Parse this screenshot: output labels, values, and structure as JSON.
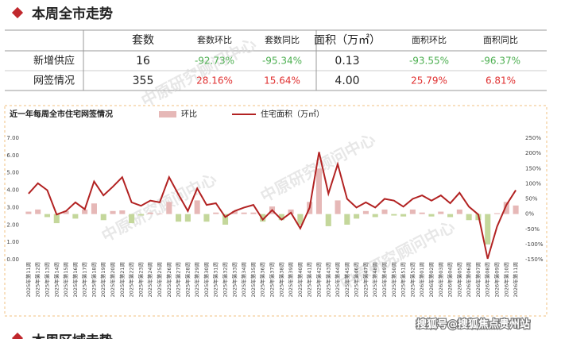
{
  "header": {
    "title": "本周全市走势"
  },
  "table": {
    "columns": [
      "套数",
      "套数环比",
      "套数同比",
      "面积（万㎡）",
      "面积环比",
      "面积同比"
    ],
    "rows": [
      [
        "新增供应",
        "16",
        "-92.73%",
        "-95.34%",
        "0.13",
        "-93.55%",
        "-96.37%"
      ],
      [
        "网签情况",
        "355",
        "28.16%",
        "15.64%",
        "4.00",
        "25.79%",
        "6.81%"
      ]
    ]
  },
  "chart_data": {
    "type": "bar-line",
    "title": "近一年每周全市住宅网签情况",
    "categories": [
      "2025年第11周",
      "2025年第12周",
      "2025年第13周",
      "2025年第14周",
      "2025年第15周",
      "2025年第16周",
      "2025年第17周",
      "2025年第18周",
      "2025年第19周",
      "2025年第20周",
      "2025年第21周",
      "2025年第22周",
      "2025年第23周",
      "2025年第24周",
      "2025年第25周",
      "2025年第26周",
      "2025年第27周",
      "2025年第28周",
      "2025年第29周",
      "2025年第30周",
      "2025年第31周",
      "2025年第32周",
      "2025年第33周",
      "2025年第34周",
      "2025年第35周",
      "2025年第36周",
      "2025年第37周",
      "2025年第38周",
      "2025年第39周",
      "2025年第40周",
      "2025年第41周",
      "2025年第42周",
      "2025年第43周",
      "2025年第44周",
      "2025年第45周",
      "2025年第46周",
      "2025年第47周",
      "2025年第48周",
      "2025年第49周",
      "2025年第50周",
      "2025年第51周",
      "2025年第52周",
      "2026年第01周",
      "2026年第02周",
      "2026年第03周",
      "2026年第04周",
      "2026年第05周",
      "2026年第06周",
      "2026年第07周",
      "2026年第08周",
      "2026年第09周",
      "2026年第10周",
      "2026年第11周"
    ],
    "series": [
      {
        "name": "环比",
        "type": "bar",
        "axis": "y2",
        "color": "#e6b8b7",
        "negative_color": "#c4d79b",
        "values": [
          8,
          15,
          -10,
          -30,
          10,
          -15,
          15,
          35,
          -20,
          10,
          12,
          -30,
          -5,
          5,
          2,
          40,
          -25,
          -25,
          45,
          -25,
          5,
          -35,
          10,
          5,
          5,
          -25,
          25,
          -20,
          15,
          -35,
          40,
          150,
          -40,
          45,
          -35,
          -15,
          10,
          -10,
          15,
          -5,
          -8,
          15,
          5,
          -8,
          8,
          -10,
          15,
          -20,
          -20,
          -100,
          3,
          40,
          28.16
        ]
      },
      {
        "name": "住宅面积（万㎡）",
        "type": "line",
        "axis": "y",
        "color": "#b22222",
        "values": [
          3.8,
          4.4,
          4.0,
          2.6,
          2.8,
          3.3,
          2.9,
          4.5,
          3.7,
          4.2,
          4.75,
          3.3,
          3.1,
          3.4,
          3.3,
          4.75,
          3.75,
          2.8,
          4.1,
          3.15,
          3.25,
          2.45,
          2.8,
          3.0,
          3.15,
          2.3,
          2.85,
          2.3,
          2.7,
          1.8,
          3.0,
          6.2,
          3.8,
          5.5,
          3.5,
          3.0,
          3.3,
          3.0,
          3.5,
          3.4,
          3.05,
          3.5,
          3.7,
          3.4,
          3.7,
          3.25,
          3.85,
          3.05,
          2.6,
          0.05,
          1.9,
          3.15,
          4.0
        ]
      }
    ],
    "ylim": [
      0,
      7
    ],
    "yticks": [
      {
        "value": 0,
        "label": "0.00"
      },
      {
        "value": 1,
        "label": "1.00"
      },
      {
        "value": 2,
        "label": "2.00"
      },
      {
        "value": 3,
        "label": "3.00"
      },
      {
        "value": 4,
        "label": "4.00"
      },
      {
        "value": 5,
        "label": "5.00"
      },
      {
        "value": 6,
        "label": "6.00"
      },
      {
        "value": 7,
        "label": "7.00"
      }
    ],
    "y2lim": [
      -150,
      250
    ],
    "y2ticks": [
      {
        "value": -150,
        "label": "-150%"
      },
      {
        "value": -100,
        "label": "-100%"
      },
      {
        "value": -50,
        "label": "-50%"
      },
      {
        "value": 0,
        "label": "0%"
      },
      {
        "value": 50,
        "label": "50%"
      },
      {
        "value": 100,
        "label": "100%"
      },
      {
        "value": 150,
        "label": "150%"
      },
      {
        "value": 200,
        "label": "200%"
      },
      {
        "value": 250,
        "label": "250%"
      }
    ]
  },
  "watermark": "中原研究顾问中心",
  "footer": "搜狐号@搜狐焦点贵州站",
  "next_title": "本周区域走势"
}
